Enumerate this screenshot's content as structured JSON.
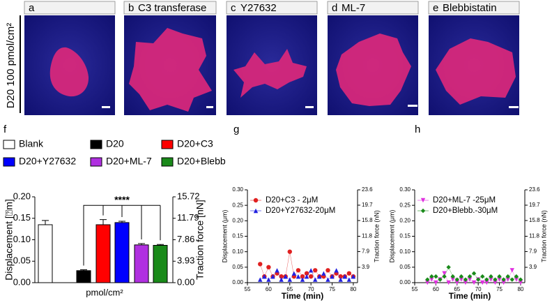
{
  "panels": [
    {
      "letter": "a",
      "label": null
    },
    {
      "letter": "b",
      "label": "C3 transferase"
    },
    {
      "letter": "c",
      "label": "Y27632"
    },
    {
      "letter": "d",
      "label": "ML-7"
    },
    {
      "letter": "e",
      "label": "Blebbistatin"
    }
  ],
  "row_label": "D20 100 pmol/cm²",
  "chart_data": [
    {
      "type": "bar",
      "panel": "f",
      "categories": [
        "Blank",
        "D20",
        "D20+C3",
        "D20+Y27632",
        "D20+ML-7",
        "D20+Blebb"
      ],
      "values": [
        0.135,
        0.028,
        0.135,
        0.14,
        0.088,
        0.087
      ],
      "errors": [
        0.01,
        0.002,
        0.012,
        0.003,
        0.003,
        0.002
      ],
      "colors": [
        "#ffffff",
        "#000000",
        "#ff0000",
        "#0000ff",
        "#b030e0",
        "#1a8a1a"
      ],
      "y_label": "Displacement [⍰m]",
      "y2_label": "Traction force [nN]",
      "x_label": "pmol/cm²",
      "annotation": "****",
      "ylim": [
        0,
        0.2
      ],
      "yticks": [
        {
          "value": 0,
          "label": "0.00"
        },
        0.05,
        {
          "value": 0.1,
          "label": "0.10"
        },
        0.15,
        {
          "value": 0.2,
          "label": "0.20"
        }
      ],
      "y2lim": [
        0,
        15.72
      ],
      "y2ticks": [
        {
          "value": 0,
          "label": "0.00"
        },
        3.93,
        7.86,
        11.79,
        15.72
      ]
    },
    {
      "type": "scatter",
      "panel": "g",
      "x_label": "Time (min)",
      "y_label": "Displacement (μm)",
      "y2_label": "Traction force (nN)",
      "x": [
        58,
        59,
        60,
        61,
        62,
        63,
        64,
        65,
        66,
        67,
        68,
        69,
        70,
        71,
        72,
        73,
        74,
        75,
        76,
        77,
        78,
        79,
        80
      ],
      "series": [
        {
          "name": "D20+C3      -  2μM",
          "color": "#e02020",
          "marker": "circle",
          "values": [
            0.06,
            0.02,
            0.05,
            0.02,
            0.03,
            0.02,
            0.02,
            0.1,
            0.02,
            0.04,
            0.02,
            0.03,
            0.02,
            0.04,
            0.02,
            0.02,
            0.04,
            0.02,
            0.03,
            0.02,
            0.02,
            0.03,
            0.02
          ]
        },
        {
          "name": "D20+Y27632-20μM",
          "color": "#2020e0",
          "marker": "triangle-up",
          "values": [
            0.01,
            0.02,
            0.01,
            0.02,
            0.04,
            0.01,
            0.02,
            0.01,
            0.03,
            0.02,
            0.01,
            0.02,
            0.04,
            0.01,
            0.02,
            0.03,
            0.01,
            0.02,
            0.04,
            0.01,
            0.02,
            0.01,
            0.02
          ]
        }
      ],
      "xlim": [
        55,
        81
      ],
      "xticks": [
        55,
        60,
        65,
        70,
        75,
        80
      ],
      "ylim": [
        0,
        0.3
      ],
      "yticks": [
        {
          "value": 0,
          "label": "0.00"
        },
        0.05,
        {
          "value": 0.1,
          "label": "0.10"
        },
        0.15,
        {
          "value": 0.2,
          "label": "0.20"
        },
        0.25,
        {
          "value": 0.3,
          "label": "0.30"
        }
      ],
      "y2lim": [
        0,
        23.6
      ],
      "y2ticks": [
        3.9,
        7.9,
        11.8,
        15.8,
        19.7,
        23.6
      ]
    },
    {
      "type": "scatter",
      "panel": "h",
      "x_label": "Time (min)",
      "y_label": "Displacement (μm)",
      "y2_label": "Traction force (nN)",
      "x": [
        58,
        59,
        60,
        61,
        62,
        63,
        64,
        65,
        66,
        67,
        68,
        69,
        70,
        71,
        72,
        73,
        74,
        75,
        76,
        77,
        78,
        79,
        80
      ],
      "series": [
        {
          "name": "D20+ML-7   -25μM",
          "color": "#e030e0",
          "marker": "triangle-down",
          "values": [
            0.0,
            0.01,
            0.0,
            0.01,
            0.03,
            0.0,
            0.01,
            0.0,
            0.01,
            0.0,
            0.01,
            0.0,
            0.01,
            0.0,
            0.0,
            0.01,
            0.0,
            0.01,
            0.0,
            0.01,
            0.04,
            0.01,
            0.0
          ]
        },
        {
          "name": "D20+Blebb.-30μM",
          "color": "#1a8a1a",
          "marker": "diamond",
          "values": [
            0.01,
            0.02,
            0.02,
            0.01,
            0.02,
            0.05,
            0.02,
            0.01,
            0.02,
            0.01,
            0.02,
            0.03,
            0.01,
            0.02,
            0.01,
            0.02,
            0.01,
            0.02,
            0.01,
            0.02,
            0.01,
            0.02,
            0.01
          ]
        }
      ],
      "xlim": [
        55,
        81
      ],
      "xticks": [
        55,
        60,
        65,
        70,
        75,
        80
      ],
      "ylim": [
        0,
        0.3
      ],
      "yticks": [
        {
          "value": 0,
          "label": "0.00"
        },
        0.05,
        {
          "value": 0.1,
          "label": "0.10"
        },
        0.15,
        {
          "value": 0.2,
          "label": "0.20"
        },
        0.25,
        {
          "value": 0.3,
          "label": "0.30"
        }
      ],
      "y2lim": [
        0,
        23.6
      ],
      "y2ticks": [
        3.9,
        7.9,
        11.8,
        15.8,
        19.7,
        23.6
      ]
    }
  ]
}
